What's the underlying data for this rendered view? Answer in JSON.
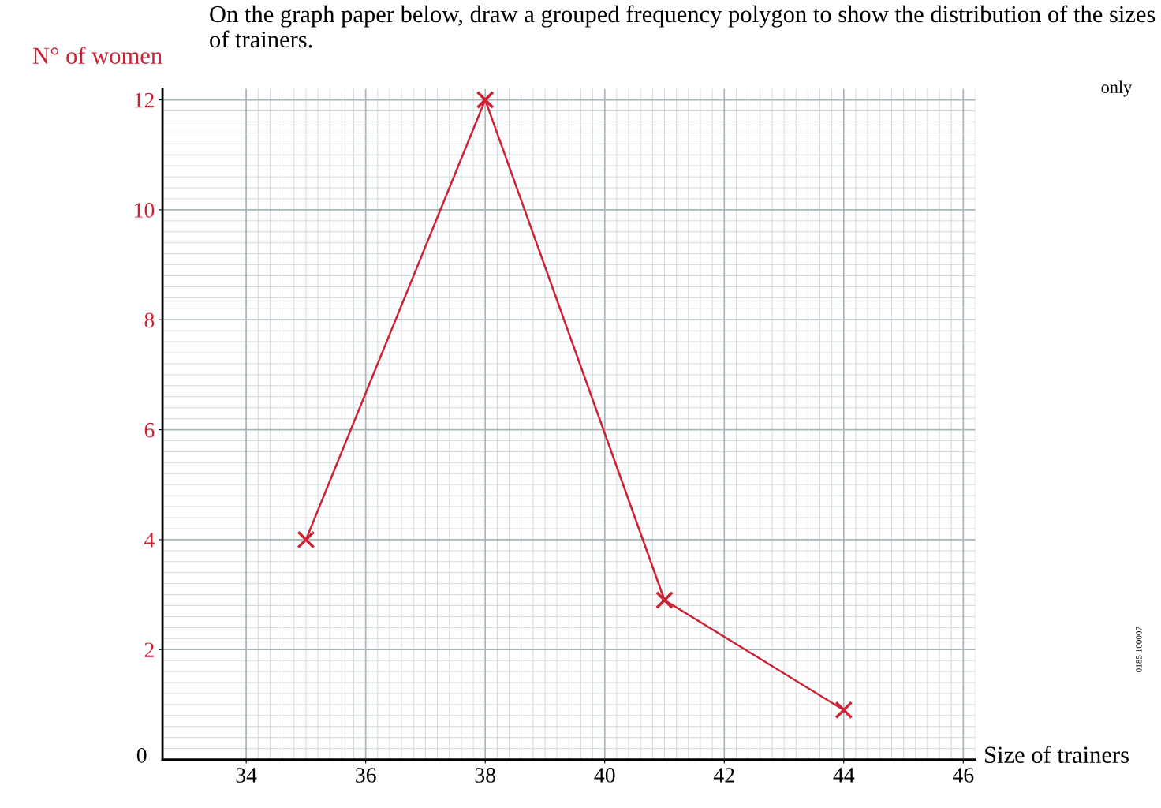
{
  "chart_data": {
    "type": "line",
    "title": "On the graph paper below, draw a grouped frequency polygon to show the distribution of the sizes of trainers.",
    "xlabel": "Size of trainers",
    "ylabel": "N° of women",
    "annotations": [
      "only",
      "0185 100007",
      "0"
    ],
    "x": [
      35,
      38,
      41,
      44
    ],
    "series": [
      {
        "color": "#cc2233",
        "values": [
          4,
          12,
          2.9,
          0.9
        ]
      }
    ],
    "xlim": [
      32.6,
      46.2
    ],
    "ylim": [
      0,
      12.2
    ],
    "xticks": [
      34,
      36,
      38,
      40,
      42,
      44,
      46
    ],
    "yticks": [
      2,
      4,
      6,
      8,
      10,
      12
    ],
    "grid": true,
    "marker": "cross",
    "line_style": "solid",
    "legend": false
  }
}
